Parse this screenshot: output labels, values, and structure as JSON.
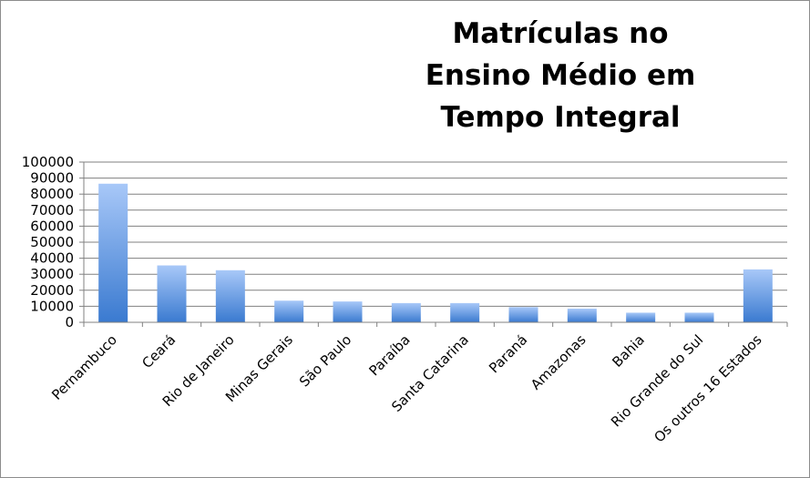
{
  "chart_data": {
    "type": "bar",
    "title_lines": [
      "Matrículas no",
      "Ensino Médio em",
      "Tempo Integral"
    ],
    "categories": [
      "Pernambuco",
      "Ceará",
      "Rio de Janeiro",
      "Minas Gerais",
      "São Paulo",
      "Paraíba",
      "Santa Catarina",
      "Paraná",
      "Amazonas",
      "Bahia",
      "Rio Grande do Sul",
      "Os outros 16 Estados"
    ],
    "values": [
      86500,
      35500,
      32500,
      13500,
      13000,
      12000,
      12000,
      9500,
      8500,
      6000,
      6000,
      33000
    ],
    "ylim": [
      0,
      100000
    ],
    "y_ticks": [
      "0",
      "10000",
      "20000",
      "30000",
      "40000",
      "50000",
      "60000",
      "70000",
      "80000",
      "90000",
      "100000"
    ],
    "grid": true,
    "legend": "none",
    "colors": {
      "bar_top": "#a8c8f8",
      "bar_bottom": "#3a7ad0",
      "grid": "#808080",
      "axis": "#808080"
    }
  }
}
